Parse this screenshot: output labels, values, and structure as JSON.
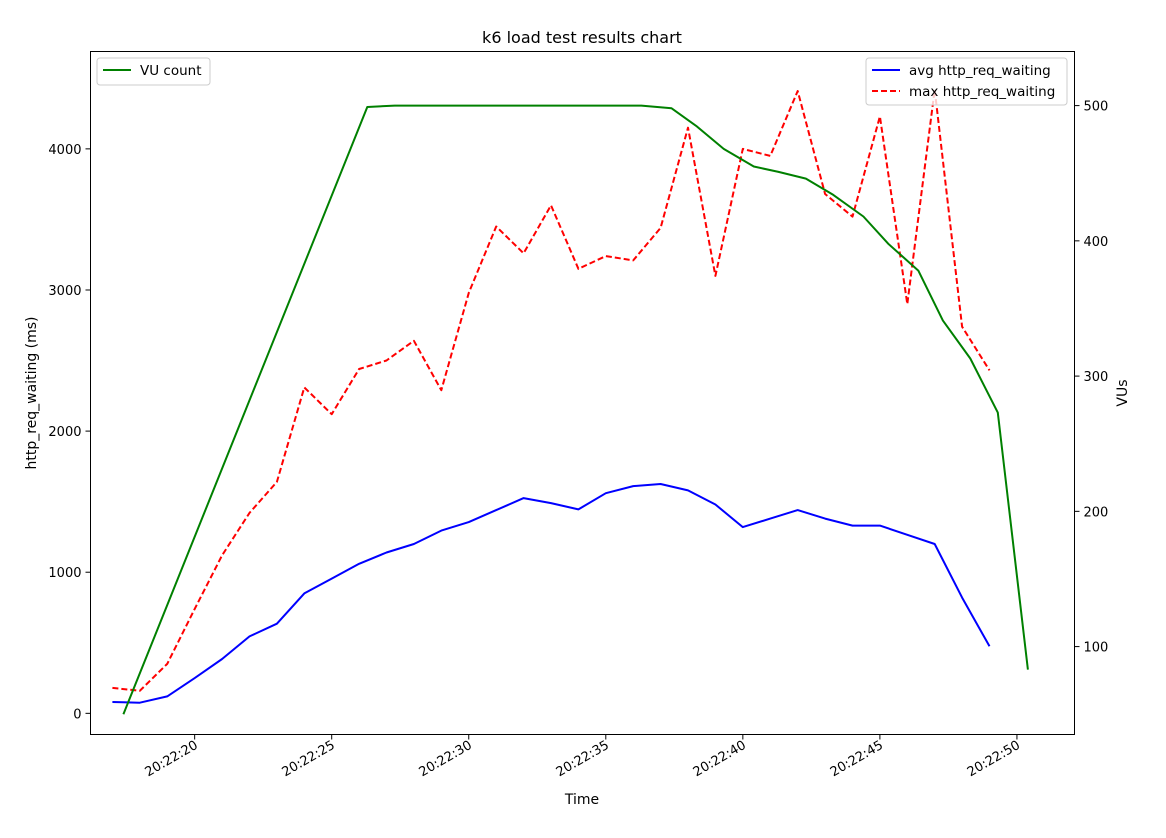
{
  "chart_data": {
    "type": "line",
    "title": "k6 load test results chart",
    "xlabel": "Time",
    "ylabel_left": "http_req_waiting (ms)",
    "ylabel_right": "VUs",
    "x_tick_labels": [
      "20:22:20",
      "20:22:25",
      "20:22:30",
      "20:22:35",
      "20:22:40",
      "20:22:45",
      "20:22:50"
    ],
    "ylim_left": [
      -150,
      4690
    ],
    "yticks_left": [
      0,
      1000,
      2000,
      3000,
      4000
    ],
    "ylim_right": [
      35,
      540
    ],
    "yticks_right": [
      100,
      200,
      300,
      400,
      500
    ],
    "xlim": [
      "20:22:16.2",
      "20:22:52.1"
    ],
    "grid": false,
    "legends": {
      "left": {
        "placement": "upper left",
        "entries": [
          "VU count"
        ]
      },
      "right": {
        "placement": "upper right",
        "entries": [
          "avg http_req_waiting",
          "max http_req_waiting"
        ]
      }
    },
    "series": [
      {
        "name": "avg http_req_waiting",
        "axis": "left",
        "color": "#0000ff",
        "style": "solid",
        "x": [
          "20:22:17",
          "20:22:18",
          "20:22:19",
          "20:22:20",
          "20:22:21",
          "20:22:22",
          "20:22:23",
          "20:22:24",
          "20:22:25",
          "20:22:26",
          "20:22:27",
          "20:22:28",
          "20:22:29",
          "20:22:30",
          "20:22:31",
          "20:22:32",
          "20:22:33",
          "20:22:34",
          "20:22:35",
          "20:22:36",
          "20:22:37",
          "20:22:38",
          "20:22:39",
          "20:22:40",
          "20:22:41",
          "20:22:42",
          "20:22:43",
          "20:22:44",
          "20:22:45",
          "20:22:46",
          "20:22:47",
          "20:22:48",
          "20:22:49"
        ],
        "values": [
          80,
          75,
          120,
          250,
          385,
          545,
          635,
          850,
          955,
          1060,
          1140,
          1200,
          1295,
          1355,
          1440,
          1525,
          1490,
          1445,
          1560,
          1610,
          1625,
          1580,
          1480,
          1320,
          1380,
          1440,
          1380,
          1330,
          1330,
          1265,
          1200,
          820,
          475
        ]
      },
      {
        "name": "max http_req_waiting",
        "axis": "left",
        "color": "#ff0000",
        "style": "dashed",
        "x": [
          "20:22:17",
          "20:22:18",
          "20:22:19",
          "20:22:20",
          "20:22:21",
          "20:22:22",
          "20:22:23",
          "20:22:24",
          "20:22:25",
          "20:22:26",
          "20:22:27",
          "20:22:28",
          "20:22:29",
          "20:22:30",
          "20:22:31",
          "20:22:32",
          "20:22:33",
          "20:22:34",
          "20:22:35",
          "20:22:36",
          "20:22:37",
          "20:22:38",
          "20:22:39",
          "20:22:40",
          "20:22:41",
          "20:22:42",
          "20:22:43",
          "20:22:44",
          "20:22:45",
          "20:22:46",
          "20:22:47",
          "20:22:48",
          "20:22:49"
        ],
        "values": [
          180,
          160,
          350,
          740,
          1120,
          1420,
          1640,
          2310,
          2120,
          2440,
          2500,
          2640,
          2290,
          2980,
          3450,
          3260,
          3600,
          3150,
          3240,
          3210,
          3440,
          4150,
          3100,
          4000,
          3950,
          4410,
          3680,
          3520,
          4230,
          2900,
          4420,
          2740,
          2430
        ]
      },
      {
        "name": "VU count",
        "axis": "right",
        "color": "#008000",
        "style": "solid",
        "x": [
          "20:22:17.4",
          "20:22:26.3",
          "20:22:27.3",
          "20:22:36.3",
          "20:22:37.4",
          "20:22:38.3",
          "20:22:39.3",
          "20:22:40.4",
          "20:22:41.3",
          "20:22:42.3",
          "20:22:43.3",
          "20:22:44.4",
          "20:22:45.3",
          "20:22:46.4",
          "20:22:47.3",
          "20:22:48.3",
          "20:22:49.3",
          "20:22:50.4"
        ],
        "values": [
          50,
          499,
          500,
          500,
          498,
          485,
          468,
          455,
          451,
          446,
          434,
          418,
          398,
          378,
          341,
          313,
          273,
          83
        ]
      }
    ]
  }
}
